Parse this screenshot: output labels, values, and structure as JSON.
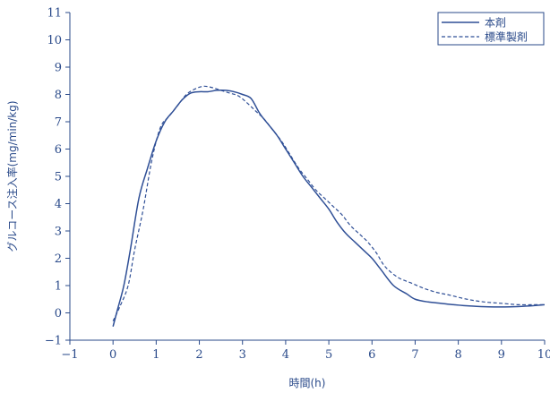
{
  "chart_data": {
    "type": "line",
    "title": "",
    "xlabel": "時間(h)",
    "ylabel": "グルコース注入率(mg/min/kg)",
    "xlim": [
      -1,
      10
    ],
    "ylim": [
      -1,
      11
    ],
    "x_ticks": [
      "−1",
      "0",
      "1",
      "2",
      "3",
      "4",
      "5",
      "6",
      "7",
      "8",
      "9",
      "10"
    ],
    "y_ticks": [
      "−1",
      "0",
      "1",
      "2",
      "3",
      "4",
      "5",
      "6",
      "7",
      "8",
      "9",
      "10",
      "11"
    ],
    "grid": false,
    "legend_position": "top-right",
    "colors": {
      "axis": "#2a4a8a",
      "series": "#2f4f96"
    },
    "series": [
      {
        "name": "本剤",
        "style": "solid",
        "x": [
          0,
          0.1,
          0.25,
          0.4,
          0.6,
          0.8,
          1.0,
          1.2,
          1.4,
          1.6,
          1.8,
          2.0,
          2.2,
          2.4,
          2.6,
          2.8,
          3.0,
          3.2,
          3.4,
          3.6,
          3.8,
          4.0,
          4.2,
          4.4,
          4.6,
          4.8,
          5.0,
          5.2,
          5.4,
          5.6,
          5.8,
          6.0,
          6.2,
          6.5,
          6.8,
          7.0,
          7.3,
          7.6,
          7.9,
          8.3,
          8.7,
          9.2,
          9.6,
          10.0
        ],
        "y": [
          -0.5,
          0.1,
          1.0,
          2.3,
          4.2,
          5.3,
          6.3,
          7.0,
          7.4,
          7.8,
          8.05,
          8.1,
          8.1,
          8.15,
          8.15,
          8.1,
          8.0,
          7.85,
          7.3,
          6.9,
          6.5,
          6.0,
          5.5,
          5.0,
          4.6,
          4.2,
          3.8,
          3.3,
          2.9,
          2.6,
          2.3,
          2.0,
          1.6,
          1.0,
          0.7,
          0.5,
          0.4,
          0.35,
          0.3,
          0.25,
          0.22,
          0.22,
          0.25,
          0.3
        ]
      },
      {
        "name": "標準製剤",
        "style": "dashed",
        "x": [
          0,
          0.15,
          0.35,
          0.5,
          0.7,
          0.9,
          1.1,
          1.3,
          1.5,
          1.7,
          1.9,
          2.1,
          2.3,
          2.5,
          2.7,
          2.9,
          3.1,
          3.3,
          3.5,
          3.7,
          3.9,
          4.1,
          4.3,
          4.5,
          4.7,
          4.9,
          5.1,
          5.3,
          5.5,
          5.7,
          5.9,
          6.1,
          6.3,
          6.6,
          6.9,
          7.2,
          7.5,
          7.8,
          8.2,
          8.6,
          9.0,
          9.4,
          9.8,
          10.0
        ],
        "y": [
          -0.3,
          0.2,
          1.0,
          2.3,
          3.8,
          5.6,
          6.8,
          7.2,
          7.6,
          8.0,
          8.2,
          8.3,
          8.25,
          8.15,
          8.05,
          7.95,
          7.7,
          7.4,
          7.1,
          6.7,
          6.3,
          5.8,
          5.3,
          4.9,
          4.5,
          4.2,
          3.9,
          3.6,
          3.2,
          2.9,
          2.6,
          2.2,
          1.7,
          1.3,
          1.1,
          0.9,
          0.75,
          0.65,
          0.5,
          0.4,
          0.35,
          0.3,
          0.3,
          0.3
        ]
      }
    ]
  }
}
